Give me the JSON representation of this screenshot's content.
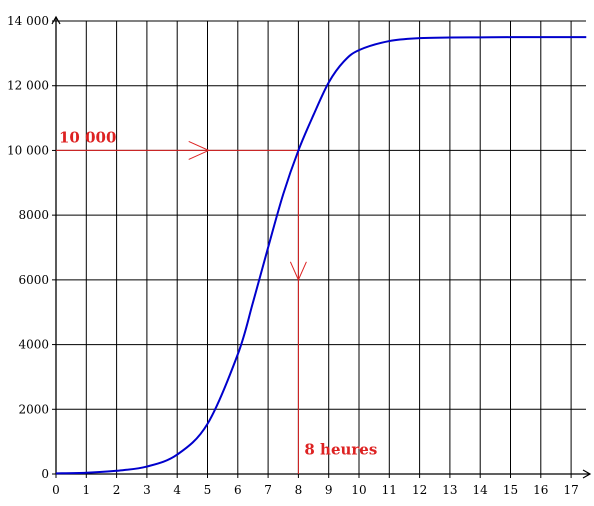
{
  "chart_data": {
    "type": "line",
    "title": "",
    "xlabel": "",
    "ylabel": "",
    "xlim": [
      0,
      17.5
    ],
    "ylim": [
      0,
      14000
    ],
    "x_ticks": [
      "0",
      "1",
      "2",
      "3",
      "4",
      "5",
      "6",
      "7",
      "8",
      "9",
      "10",
      "11",
      "12",
      "13",
      "14",
      "15",
      "16",
      "17"
    ],
    "y_ticks": [
      "0",
      "2000",
      "4000",
      "6000",
      "8000",
      "10 000",
      "12 000",
      "14 000"
    ],
    "y_tick_values": [
      0,
      2000,
      4000,
      6000,
      8000,
      10000,
      12000,
      14000
    ],
    "grid": true,
    "series": [
      {
        "color": "#0000cc",
        "x": [
          0,
          1,
          2,
          3,
          4,
          5,
          6,
          6.5,
          7,
          7.5,
          8,
          8.5,
          9,
          9.5,
          10,
          11,
          12,
          13,
          14,
          15,
          16,
          17,
          17.5
        ],
        "y": [
          20,
          40,
          100,
          230,
          600,
          1550,
          3700,
          5300,
          7000,
          8650,
          10000,
          11100,
          12100,
          12750,
          13100,
          13380,
          13470,
          13490,
          13495,
          13500,
          13500,
          13500,
          13500
        ]
      }
    ],
    "annotations": {
      "color": "#dd2222",
      "y_value": 10000,
      "y_label": "10 000",
      "x_value": 8,
      "x_label": "8 heures"
    }
  }
}
